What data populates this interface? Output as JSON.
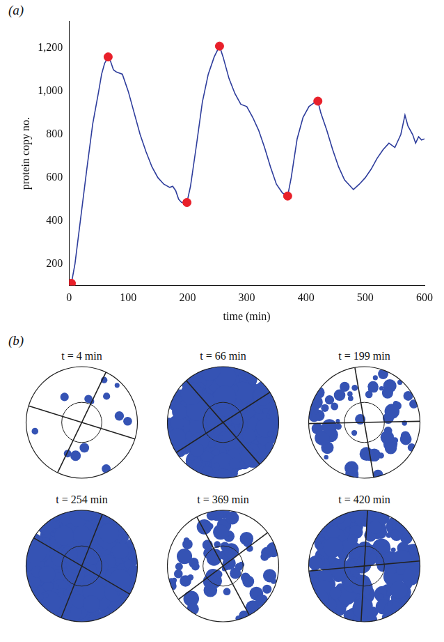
{
  "chart_data": {
    "type": "line",
    "panel_label": "(a)",
    "x_label": "time (min)",
    "y_label": "protein copy no.",
    "xlim": [
      0,
      600
    ],
    "xticks": [
      0,
      100,
      200,
      300,
      400,
      500,
      600
    ],
    "ylim": [
      100,
      1325
    ],
    "yticks": [
      200,
      400,
      600,
      800,
      1000,
      1200
    ],
    "grid": false,
    "series": [
      {
        "type": "line",
        "color": "#2e3d9c",
        "line_style": "solid",
        "x": [
          4,
          10,
          20,
          30,
          40,
          50,
          55,
          60,
          66,
          70,
          75,
          80,
          90,
          100,
          110,
          120,
          130,
          140,
          150,
          160,
          170,
          175,
          180,
          185,
          190,
          199,
          205,
          215,
          225,
          235,
          245,
          254,
          260,
          270,
          280,
          290,
          300,
          310,
          320,
          330,
          340,
          350,
          360,
          369,
          375,
          385,
          395,
          405,
          415,
          420,
          425,
          435,
          445,
          455,
          465,
          475,
          480,
          490,
          500,
          510,
          520,
          530,
          540,
          550,
          560,
          567,
          572,
          580,
          585,
          590,
          595,
          600
        ],
        "values": [
          110,
          200,
          420,
          640,
          850,
          1000,
          1080,
          1130,
          1160,
          1140,
          1100,
          1090,
          1080,
          1000,
          900,
          800,
          720,
          650,
          600,
          570,
          555,
          560,
          540,
          500,
          485,
          485,
          560,
          750,
          950,
          1080,
          1160,
          1210,
          1160,
          1060,
          990,
          940,
          930,
          880,
          820,
          740,
          650,
          570,
          530,
          515,
          600,
          780,
          880,
          930,
          950,
          955,
          900,
          820,
          730,
          650,
          590,
          560,
          545,
          570,
          600,
          640,
          690,
          730,
          760,
          740,
          800,
          890,
          840,
          800,
          760,
          790,
          775,
          780
        ]
      },
      {
        "type": "scatter",
        "color": "#e8202a",
        "marker": "circle",
        "x": [
          4,
          66,
          199,
          254,
          369,
          420
        ],
        "values": [
          110,
          1160,
          485,
          1210,
          515,
          955
        ]
      }
    ]
  },
  "panel_b": {
    "panel_label": "(b)",
    "snapshots": [
      {
        "title": "t = 4 min"
      },
      {
        "title": "t = 66 min"
      },
      {
        "title": "t = 199 min"
      },
      {
        "title": "t = 254 min"
      },
      {
        "title": "t = 369 min"
      },
      {
        "title": "t = 420 min"
      }
    ]
  }
}
